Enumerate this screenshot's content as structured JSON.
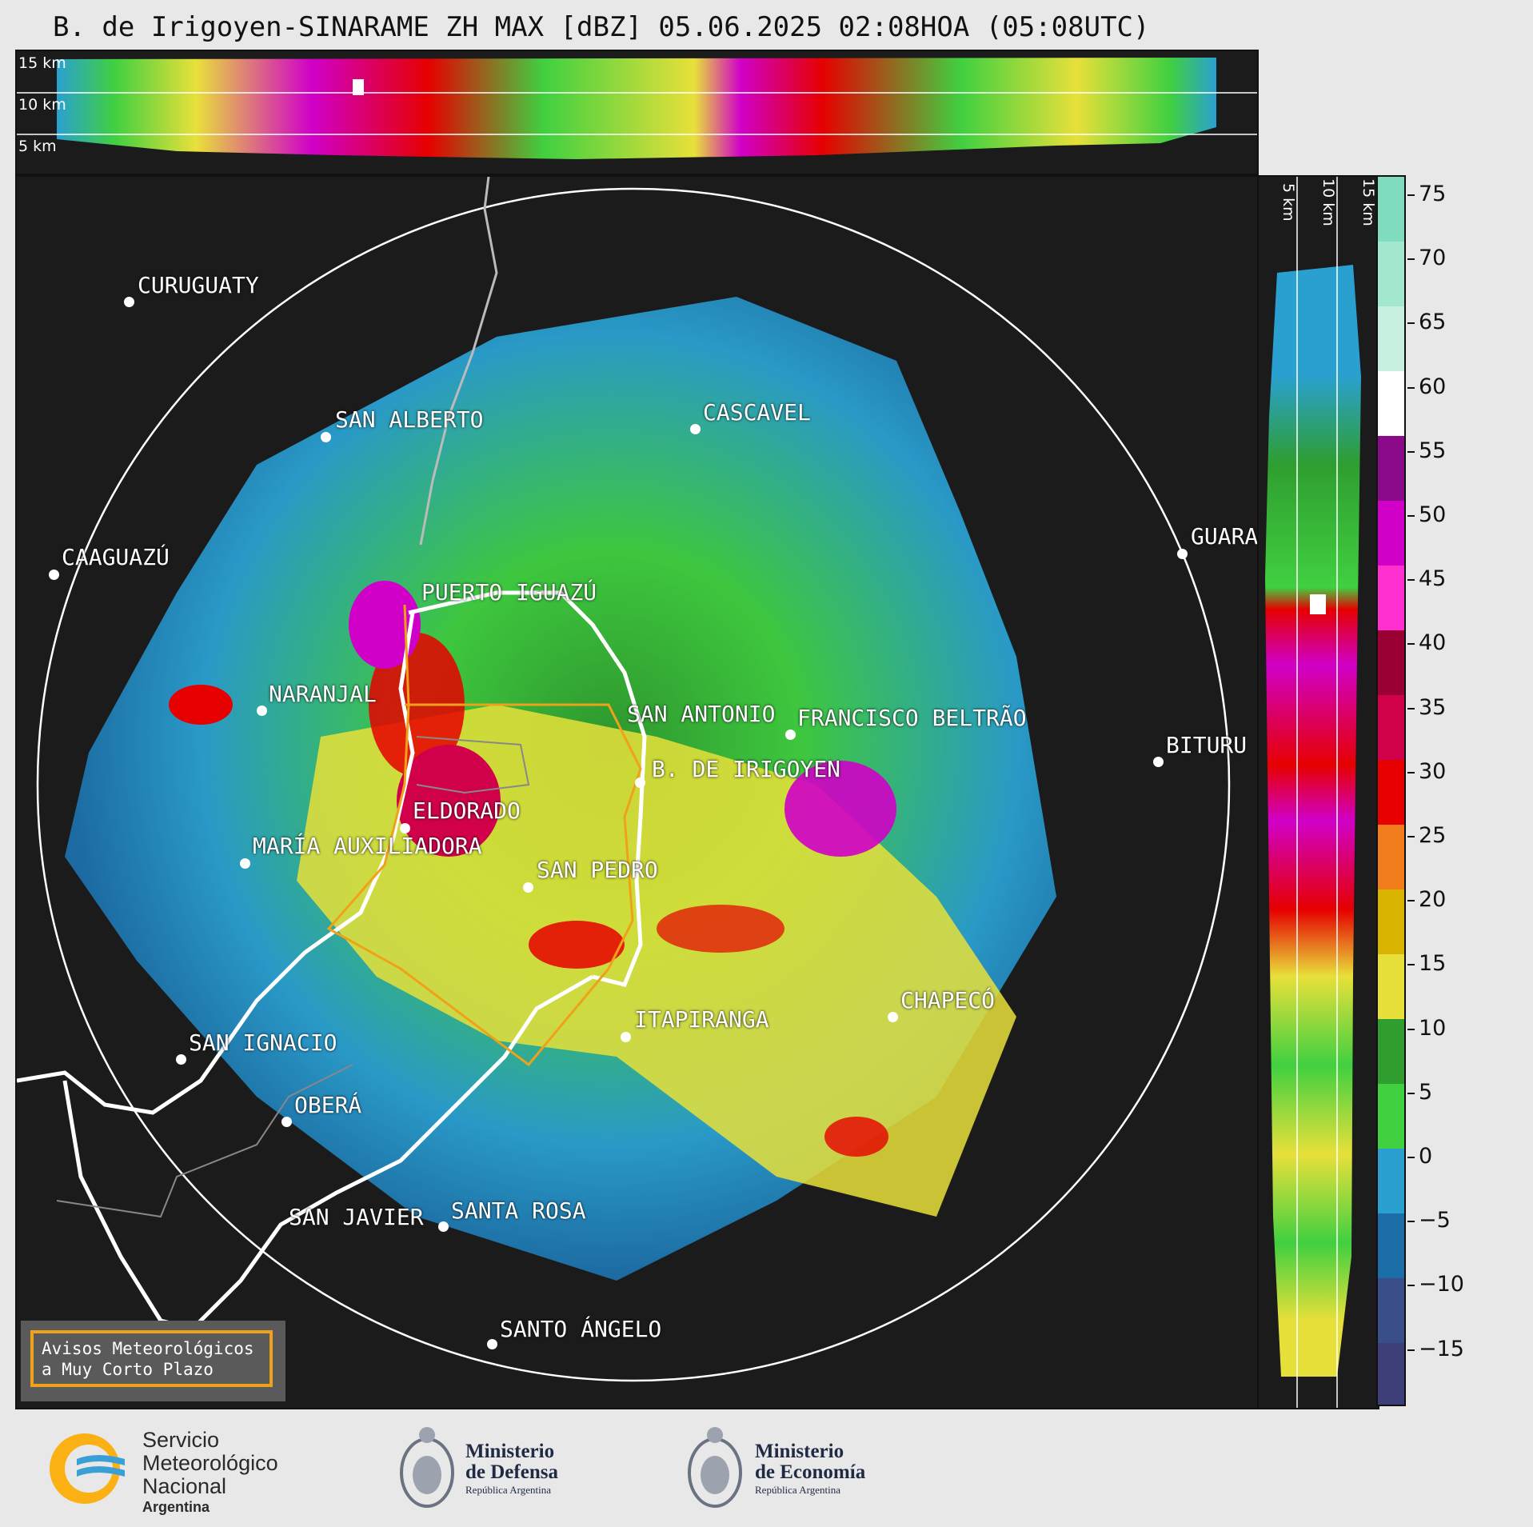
{
  "title": "B. de Irigoyen-SINARAME ZH MAX [dBZ] 05.06.2025 02:08HOA (05:08UTC)",
  "top_panel": {
    "km_labels": [
      "15 km",
      "10 km",
      "5 km"
    ]
  },
  "right_panel": {
    "km_labels": [
      "5 km",
      "10 km",
      "15 km"
    ]
  },
  "cities": [
    {
      "name": "CURUGUATY"
    },
    {
      "name": "SAN ALBERTO"
    },
    {
      "name": "CASCAVEL"
    },
    {
      "name": "CAAGUAZÚ"
    },
    {
      "name": "GUARA"
    },
    {
      "name": "PUERTO IGUAZÚ"
    },
    {
      "name": "NARANJAL"
    },
    {
      "name": "SAN ANTONIO"
    },
    {
      "name": "FRANCISCO BELTRÃO"
    },
    {
      "name": "B. DE IRIGOYEN"
    },
    {
      "name": "BITURU"
    },
    {
      "name": "ELDORADO"
    },
    {
      "name": "MARÍA AUXILIADORA"
    },
    {
      "name": "SAN PEDRO"
    },
    {
      "name": "CHAPECÓ"
    },
    {
      "name": "ITAPIRANGA"
    },
    {
      "name": "SAN IGNACIO"
    },
    {
      "name": "OBERÁ"
    },
    {
      "name": "SAN JAVIER"
    },
    {
      "name": "SANTA ROSA"
    },
    {
      "name": "SANTO ÁNGELO"
    }
  ],
  "colorbar": {
    "unit": "dBZ",
    "ticks": [
      "75",
      "70",
      "65",
      "60",
      "55",
      "50",
      "45",
      "40",
      "35",
      "30",
      "25",
      "20",
      "15",
      "10",
      "5",
      "0",
      "−5",
      "−10",
      "−15"
    ],
    "colors": [
      "#7fdcbe",
      "#a4e7cf",
      "#c8f0e1",
      "#ffffff",
      "#8a0a8a",
      "#d000c8",
      "#ff2fd0",
      "#9a0033",
      "#d0004a",
      "#e60000",
      "#f07c1c",
      "#d8b400",
      "#e8e03a",
      "#2f9e2f",
      "#40d040",
      "#2aa0d0",
      "#1c6ea8",
      "#3a4e8a",
      "#3c3f78"
    ]
  },
  "aviso": {
    "line1": "Avisos Meteorológicos",
    "line2": "a Muy Corto Plazo"
  },
  "footer": {
    "smn_line1": "Servicio",
    "smn_line2": "Meteorológico",
    "smn_line3": "Nacional",
    "smn_line4": "Argentina",
    "defensa_line1": "Ministerio",
    "defensa_line2": "de Defensa",
    "defensa_line3": "República Argentina",
    "economia_line1": "Ministerio",
    "economia_line2": "de Economía",
    "economia_line3": "República Argentina"
  }
}
